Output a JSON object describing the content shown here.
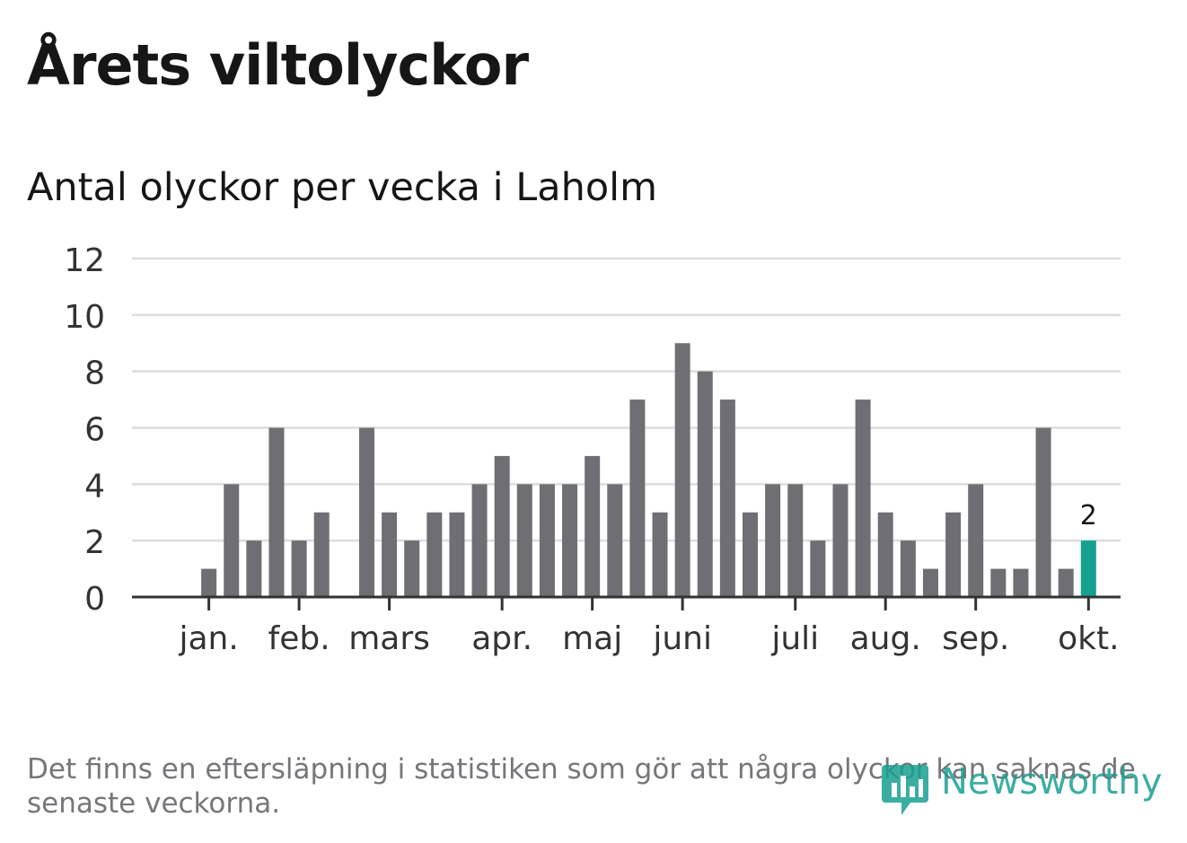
{
  "title": "Årets viltolyckor",
  "subtitle": "Antal olyckor per vecka i Laholm",
  "footnote": "Det finns en eftersläpning i statistiken som gör att några olyckor kan saknas de senaste veckorna.",
  "logo": {
    "text": "Newsworthy",
    "icon": "bar-chart-speech-bubble-icon"
  },
  "colors": {
    "bar": "#6f6e73",
    "highlight": "#15a090",
    "grid": "#dcdcdc",
    "axis": "#333333",
    "text": "#161616",
    "footnote": "#76767b"
  },
  "chart_data": {
    "type": "bar",
    "title": "Årets viltolyckor",
    "subtitle": "Antal olyckor per vecka i Laholm",
    "ylim": [
      0,
      12
    ],
    "yticks": [
      0,
      2,
      4,
      6,
      8,
      10,
      12
    ],
    "grid": true,
    "weeks": [
      1,
      2,
      3,
      4,
      5,
      6,
      7,
      8,
      9,
      10,
      11,
      12,
      13,
      14,
      15,
      16,
      17,
      18,
      19,
      20,
      21,
      22,
      23,
      24,
      25,
      26,
      27,
      28,
      29,
      30,
      31,
      32,
      33,
      34,
      35,
      36,
      37,
      38,
      39,
      40,
      41
    ],
    "values": [
      0,
      1,
      4,
      2,
      6,
      2,
      3,
      0,
      6,
      3,
      2,
      3,
      3,
      4,
      5,
      4,
      4,
      4,
      5,
      4,
      7,
      3,
      9,
      8,
      7,
      3,
      4,
      4,
      2,
      4,
      7,
      3,
      2,
      1,
      3,
      4,
      1,
      1,
      6,
      1,
      2
    ],
    "month_ticks": [
      {
        "label": "jan.",
        "week": 2
      },
      {
        "label": "feb.",
        "week": 6
      },
      {
        "label": "mars",
        "week": 10
      },
      {
        "label": "apr.",
        "week": 15
      },
      {
        "label": "maj",
        "week": 19
      },
      {
        "label": "juni",
        "week": 23
      },
      {
        "label": "juli",
        "week": 28
      },
      {
        "label": "aug.",
        "week": 32
      },
      {
        "label": "sep.",
        "week": 36
      },
      {
        "label": "okt.",
        "week": 41
      }
    ],
    "highlight_week": 41,
    "highlight_label": "2"
  }
}
